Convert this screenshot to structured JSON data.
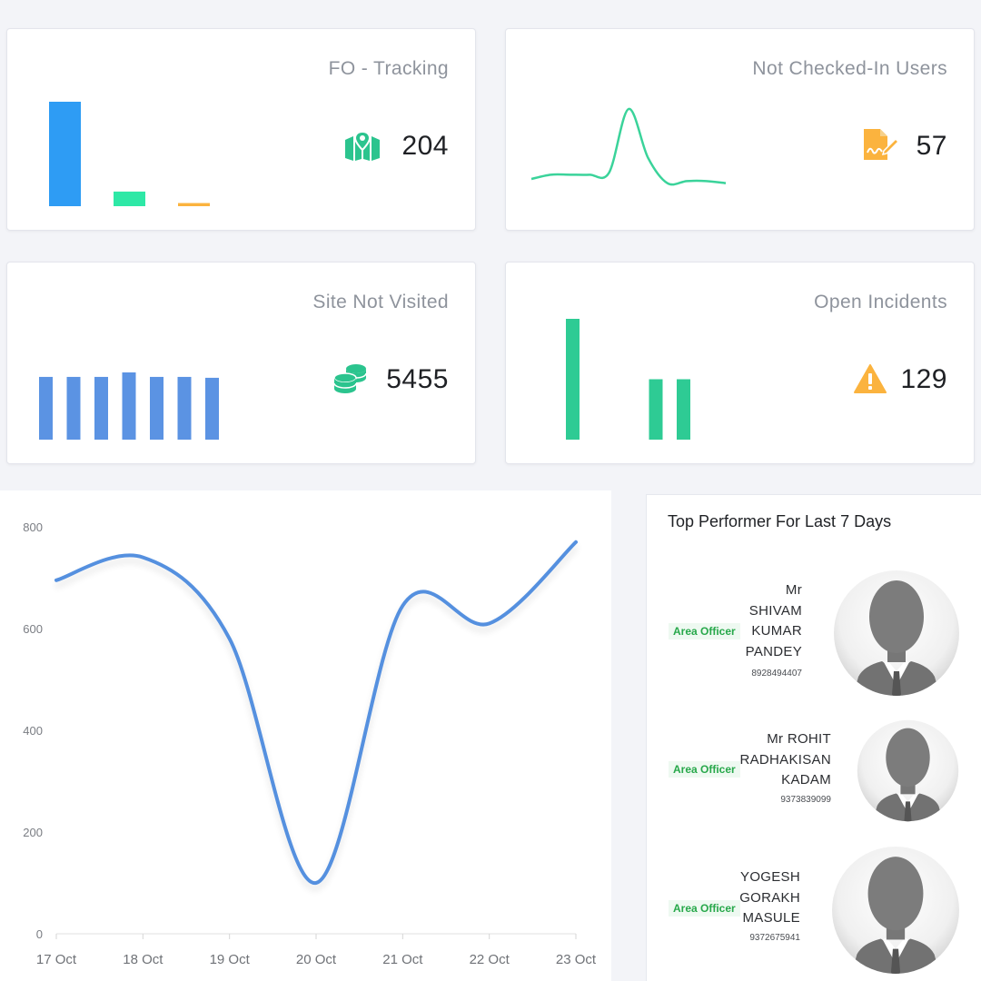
{
  "cards": [
    {
      "title": "FO - Tracking",
      "value": "204",
      "icon": "map-marker-icon",
      "icon_color": "#2bc48e",
      "spark": {
        "type": "bar",
        "values": [
          100,
          14,
          3
        ],
        "colors": [
          "#2e9cf4",
          "#2ee8a6",
          "#fbb33e"
        ]
      }
    },
    {
      "title": "Not Checked-In Users",
      "value": "57",
      "icon": "file-signature-icon",
      "icon_color": "#fbb33e",
      "spark": {
        "type": "line",
        "values": [
          3,
          5,
          5,
          5,
          6,
          36,
          13,
          1,
          2,
          2,
          1
        ],
        "color": "#3ad39a"
      }
    },
    {
      "title": "Site Not Visited",
      "value": "5455",
      "icon": "coins-icon",
      "icon_color": "#2bc48e",
      "spark": {
        "type": "bar",
        "values": [
          70,
          70,
          70,
          75,
          70,
          70,
          69
        ],
        "colors": [
          "#5b93e3"
        ]
      }
    },
    {
      "title": "Open Incidents",
      "value": "129",
      "icon": "warning-icon",
      "icon_color": "#fbb33e",
      "spark": {
        "type": "bar",
        "values": [
          130,
          0,
          0,
          65,
          65
        ],
        "colors": [
          "#2ecb94"
        ]
      }
    }
  ],
  "chart_data": {
    "type": "line",
    "categories": [
      "17 Oct",
      "18 Oct",
      "19 Oct",
      "20 Oct",
      "21 Oct",
      "22 Oct",
      "23 Oct"
    ],
    "series": [
      {
        "values": [
          695,
          740,
          580,
          100,
          645,
          610,
          770
        ]
      }
    ],
    "ylim": [
      0,
      800
    ],
    "yticks": [
      "0",
      "200",
      "400",
      "600",
      "800"
    ],
    "color": "#5590df",
    "grid": false
  },
  "top_performers": {
    "title": "Top Performer For Last 7 Days",
    "items": [
      {
        "role": "Area Officer",
        "name_lines": [
          "Mr",
          "SHIVAM",
          "KUMAR",
          "PANDEY"
        ],
        "phone": "8928494407"
      },
      {
        "role": "Area Officer",
        "name_lines": [
          "Mr ROHIT",
          "RADHAKISAN",
          "KADAM"
        ],
        "phone": "9373839099"
      },
      {
        "role": "Area Officer",
        "name_lines": [
          "YOGESH",
          "GORAKH",
          "MASULE"
        ],
        "phone": "9372675941"
      }
    ]
  }
}
